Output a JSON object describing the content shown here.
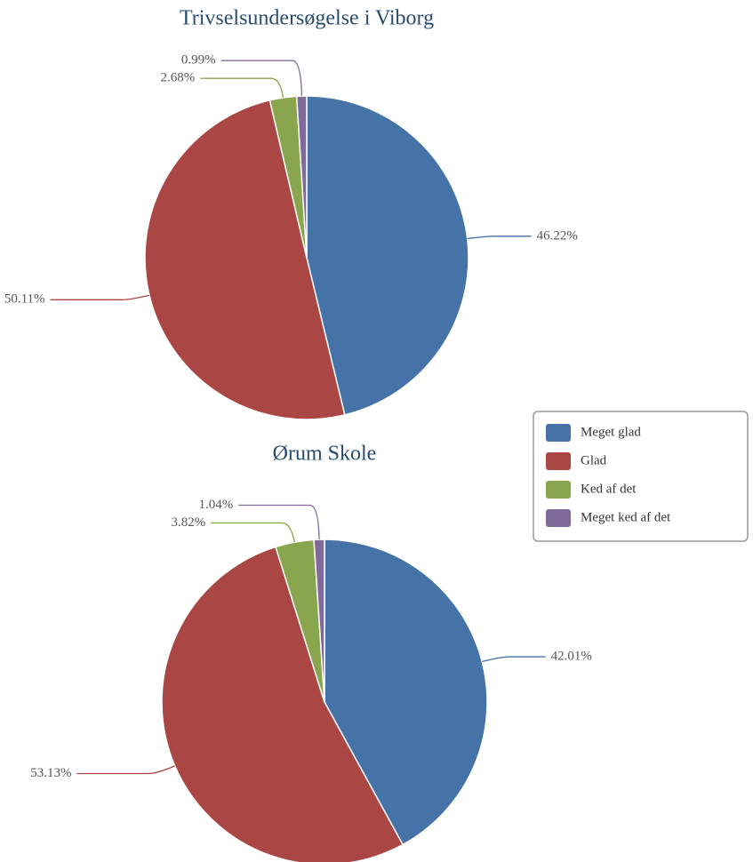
{
  "chart_data": [
    {
      "type": "pie",
      "title": "Trivselsundersøgelse i Viborg",
      "categories": [
        "Meget glad",
        "Glad",
        "Ked af det",
        "Meget ked af det"
      ],
      "values": [
        46.22,
        50.11,
        2.68,
        0.99
      ],
      "value_labels": [
        "46.22%",
        "50.11%",
        "2.68%",
        "0.99%"
      ],
      "colors": [
        "#4572a7",
        "#aa4643",
        "#89a54e",
        "#80699b"
      ],
      "legend": "right"
    },
    {
      "type": "pie",
      "title": "Ørum Skole",
      "categories": [
        "Meget glad",
        "Glad",
        "Ked af det",
        "Meget ked af det"
      ],
      "values": [
        42.01,
        53.13,
        3.82,
        1.04
      ],
      "value_labels": [
        "42.01%",
        "53.13%",
        "3.82%",
        "1.04%"
      ],
      "colors": [
        "#4572a7",
        "#aa4643",
        "#89a54e",
        "#80699b"
      ]
    }
  ]
}
